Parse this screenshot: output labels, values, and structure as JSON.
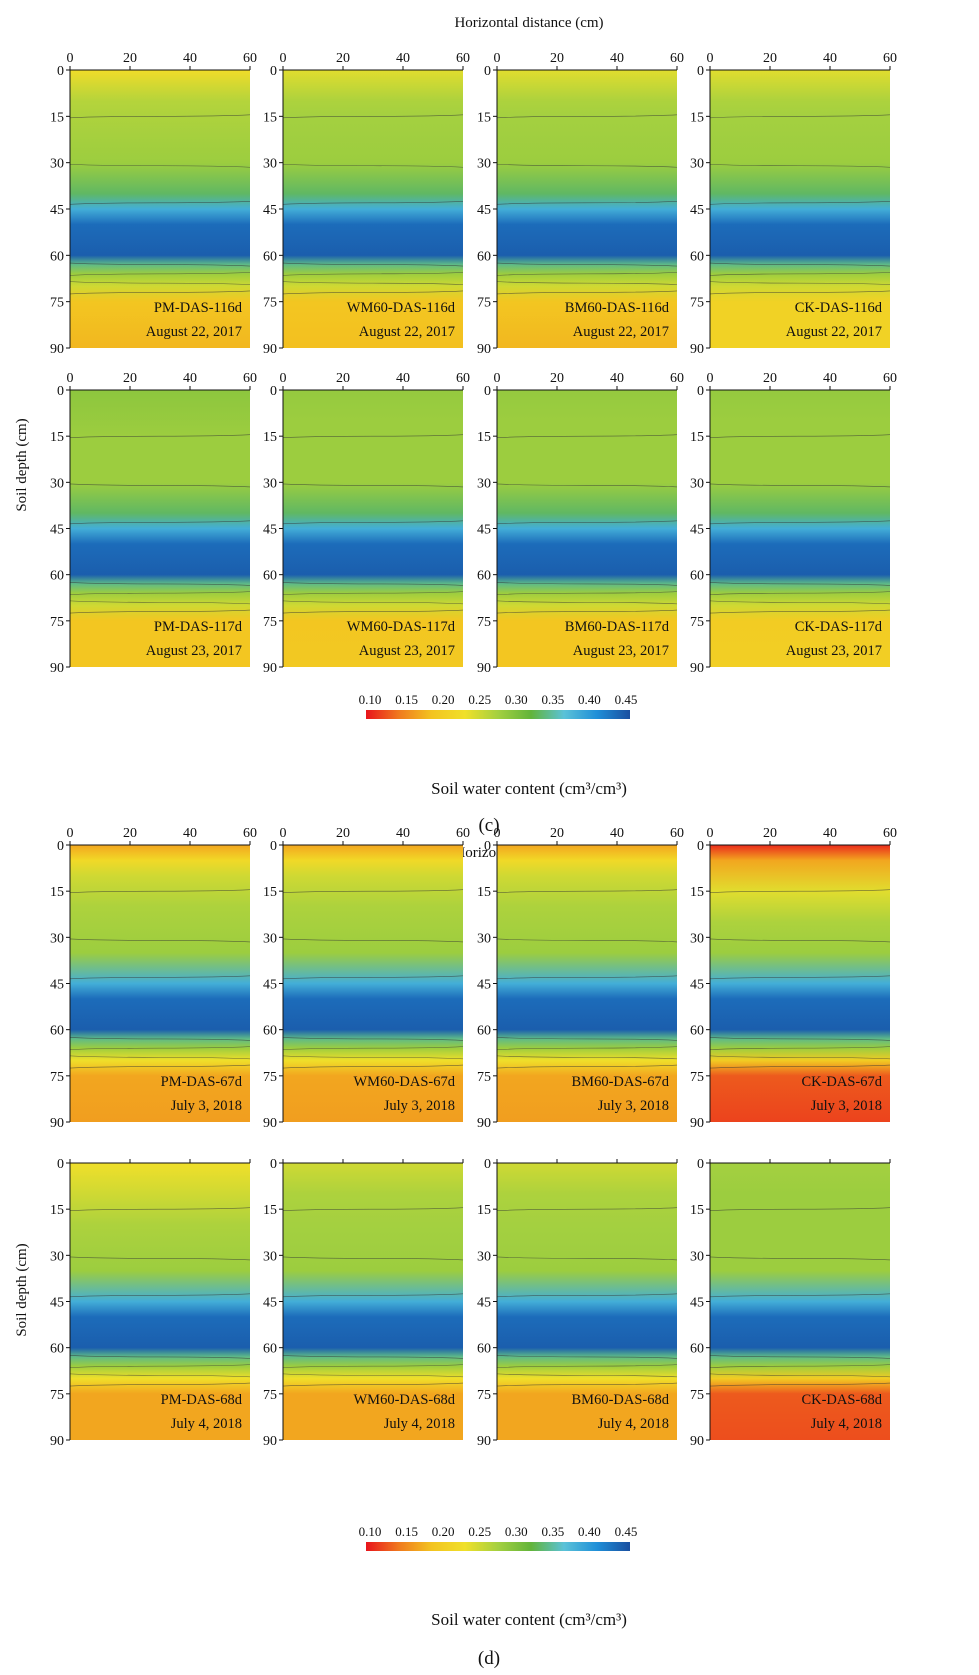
{
  "figure": {
    "panel_c_label": "(c)",
    "panel_d_label": "(d)"
  },
  "chart_data": [
    {
      "type": "heatmap",
      "panel": "c",
      "xlabel": "Horizontal distance (cm)",
      "ylabel": "Soil depth (cm)",
      "x_ticks": [
        0,
        20,
        40,
        60
      ],
      "y_ticks": [
        0,
        15,
        30,
        45,
        60,
        75,
        90
      ],
      "xlim": [
        0,
        60
      ],
      "ylim": [
        0,
        90
      ],
      "colorbar": {
        "label": "Soil water content (cm³/cm³)",
        "ticks": [
          "0.10",
          "0.15",
          "0.20",
          "0.25",
          "0.30",
          "0.35",
          "0.40",
          "0.45"
        ],
        "range": [
          0.1,
          0.45
        ],
        "colors": [
          "#e8141c",
          "#f07a1e",
          "#f3c420",
          "#f0e02a",
          "#a4d040",
          "#62b43a",
          "#5bc2d8",
          "#1f8fd8",
          "#1a4fa0"
        ]
      },
      "subplots": [
        {
          "name": "PM-DAS-116d",
          "date": "August 22, 2017",
          "profile": [
            [
              0,
              0.225
            ],
            [
              10,
              0.265
            ],
            [
              15,
              0.27
            ],
            [
              30,
              0.28
            ],
            [
              40,
              0.33
            ],
            [
              45,
              0.38
            ],
            [
              50,
              0.43
            ],
            [
              60,
              0.44
            ],
            [
              63,
              0.34
            ],
            [
              66,
              0.28
            ],
            [
              70,
              0.25
            ],
            [
              75,
              0.19
            ],
            [
              90,
              0.18
            ]
          ]
        },
        {
          "name": "WM60-DAS-116d",
          "date": "August 22, 2017",
          "profile": [
            [
              0,
              0.24
            ],
            [
              10,
              0.27
            ],
            [
              15,
              0.275
            ],
            [
              30,
              0.28
            ],
            [
              40,
              0.33
            ],
            [
              45,
              0.38
            ],
            [
              50,
              0.43
            ],
            [
              60,
              0.44
            ],
            [
              63,
              0.34
            ],
            [
              66,
              0.28
            ],
            [
              70,
              0.25
            ],
            [
              75,
              0.19
            ],
            [
              90,
              0.185
            ]
          ]
        },
        {
          "name": "BM60-DAS-116d",
          "date": "August 22, 2017",
          "profile": [
            [
              0,
              0.24
            ],
            [
              10,
              0.27
            ],
            [
              15,
              0.275
            ],
            [
              30,
              0.28
            ],
            [
              40,
              0.33
            ],
            [
              45,
              0.38
            ],
            [
              50,
              0.43
            ],
            [
              60,
              0.44
            ],
            [
              63,
              0.34
            ],
            [
              66,
              0.28
            ],
            [
              70,
              0.25
            ],
            [
              75,
              0.19
            ],
            [
              90,
              0.18
            ]
          ]
        },
        {
          "name": "CK-DAS-116d",
          "date": "August 22, 2017",
          "profile": [
            [
              0,
              0.24
            ],
            [
              10,
              0.27
            ],
            [
              15,
              0.275
            ],
            [
              30,
              0.28
            ],
            [
              40,
              0.33
            ],
            [
              45,
              0.38
            ],
            [
              50,
              0.43
            ],
            [
              60,
              0.44
            ],
            [
              63,
              0.34
            ],
            [
              66,
              0.28
            ],
            [
              70,
              0.25
            ],
            [
              75,
              0.21
            ],
            [
              90,
              0.21
            ]
          ]
        },
        {
          "name": "PM-DAS-117d",
          "date": "August 23, 2017",
          "profile": [
            [
              0,
              0.29
            ],
            [
              15,
              0.28
            ],
            [
              30,
              0.28
            ],
            [
              40,
              0.33
            ],
            [
              45,
              0.38
            ],
            [
              50,
              0.43
            ],
            [
              60,
              0.44
            ],
            [
              63,
              0.34
            ],
            [
              66,
              0.28
            ],
            [
              70,
              0.25
            ],
            [
              75,
              0.19
            ],
            [
              90,
              0.19
            ]
          ]
        },
        {
          "name": "WM60-DAS-117d",
          "date": "August 23, 2017",
          "profile": [
            [
              0,
              0.285
            ],
            [
              10,
              0.28
            ],
            [
              30,
              0.28
            ],
            [
              40,
              0.33
            ],
            [
              45,
              0.38
            ],
            [
              50,
              0.43
            ],
            [
              60,
              0.44
            ],
            [
              63,
              0.34
            ],
            [
              66,
              0.28
            ],
            [
              70,
              0.25
            ],
            [
              75,
              0.19
            ],
            [
              90,
              0.195
            ]
          ]
        },
        {
          "name": "BM60-DAS-117d",
          "date": "August 23, 2017",
          "profile": [
            [
              0,
              0.285
            ],
            [
              10,
              0.28
            ],
            [
              30,
              0.28
            ],
            [
              40,
              0.33
            ],
            [
              45,
              0.38
            ],
            [
              50,
              0.43
            ],
            [
              60,
              0.44
            ],
            [
              63,
              0.34
            ],
            [
              66,
              0.28
            ],
            [
              70,
              0.25
            ],
            [
              75,
              0.19
            ],
            [
              90,
              0.19
            ]
          ]
        },
        {
          "name": "CK-DAS-117d",
          "date": "August 23, 2017",
          "profile": [
            [
              0,
              0.285
            ],
            [
              10,
              0.28
            ],
            [
              30,
              0.28
            ],
            [
              40,
              0.33
            ],
            [
              45,
              0.38
            ],
            [
              50,
              0.43
            ],
            [
              60,
              0.44
            ],
            [
              63,
              0.34
            ],
            [
              66,
              0.28
            ],
            [
              70,
              0.25
            ],
            [
              75,
              0.2
            ],
            [
              90,
              0.205
            ]
          ]
        }
      ]
    },
    {
      "type": "heatmap",
      "panel": "d",
      "xlabel": "Horizontal distance (cm)",
      "ylabel": "Soil depth (cm)",
      "x_ticks": [
        0,
        20,
        40,
        60
      ],
      "y_ticks": [
        0,
        15,
        30,
        45,
        60,
        75,
        90
      ],
      "xlim": [
        0,
        60
      ],
      "ylim": [
        0,
        90
      ],
      "colorbar": {
        "label": "Soil water content (cm³/cm³)",
        "ticks": [
          "0.10",
          "0.15",
          "0.20",
          "0.25",
          "0.30",
          "0.35",
          "0.40",
          "0.45"
        ],
        "range": [
          0.1,
          0.45
        ],
        "colors": [
          "#e8141c",
          "#f07a1e",
          "#f3c420",
          "#f0e02a",
          "#a4d040",
          "#62b43a",
          "#5bc2d8",
          "#1f8fd8",
          "#1a4fa0"
        ]
      },
      "subplots": [
        {
          "name": "PM-DAS-67d",
          "date": "July 3, 2018",
          "profile": [
            [
              0,
              0.17
            ],
            [
              5,
              0.22
            ],
            [
              10,
              0.25
            ],
            [
              20,
              0.27
            ],
            [
              35,
              0.28
            ],
            [
              45,
              0.38
            ],
            [
              50,
              0.43
            ],
            [
              60,
              0.44
            ],
            [
              63,
              0.34
            ],
            [
              66,
              0.28
            ],
            [
              70,
              0.23
            ],
            [
              75,
              0.17
            ],
            [
              90,
              0.165
            ]
          ]
        },
        {
          "name": "WM60-DAS-67d",
          "date": "July 3, 2018",
          "profile": [
            [
              0,
              0.17
            ],
            [
              5,
              0.22
            ],
            [
              10,
              0.25
            ],
            [
              20,
              0.27
            ],
            [
              35,
              0.28
            ],
            [
              45,
              0.38
            ],
            [
              50,
              0.43
            ],
            [
              60,
              0.44
            ],
            [
              63,
              0.34
            ],
            [
              66,
              0.28
            ],
            [
              70,
              0.23
            ],
            [
              75,
              0.17
            ],
            [
              90,
              0.165
            ]
          ]
        },
        {
          "name": "BM60-DAS-67d",
          "date": "July 3, 2018",
          "profile": [
            [
              0,
              0.17
            ],
            [
              5,
              0.22
            ],
            [
              10,
              0.25
            ],
            [
              20,
              0.27
            ],
            [
              35,
              0.28
            ],
            [
              45,
              0.38
            ],
            [
              50,
              0.43
            ],
            [
              60,
              0.44
            ],
            [
              63,
              0.34
            ],
            [
              66,
              0.28
            ],
            [
              70,
              0.23
            ],
            [
              75,
              0.17
            ],
            [
              90,
              0.165
            ]
          ]
        },
        {
          "name": "CK-DAS-67d",
          "date": "July 3, 2018",
          "profile": [
            [
              0,
              0.11
            ],
            [
              5,
              0.17
            ],
            [
              15,
              0.24
            ],
            [
              25,
              0.27
            ],
            [
              35,
              0.28
            ],
            [
              45,
              0.38
            ],
            [
              50,
              0.43
            ],
            [
              60,
              0.44
            ],
            [
              63,
              0.34
            ],
            [
              66,
              0.28
            ],
            [
              70,
              0.2
            ],
            [
              75,
              0.13
            ],
            [
              90,
              0.12
            ]
          ]
        },
        {
          "name": "PM-DAS-68d",
          "date": "July 4, 2018",
          "profile": [
            [
              0,
              0.23
            ],
            [
              10,
              0.25
            ],
            [
              20,
              0.27
            ],
            [
              35,
              0.28
            ],
            [
              45,
              0.38
            ],
            [
              50,
              0.43
            ],
            [
              60,
              0.44
            ],
            [
              63,
              0.34
            ],
            [
              66,
              0.28
            ],
            [
              70,
              0.23
            ],
            [
              75,
              0.17
            ],
            [
              90,
              0.17
            ]
          ]
        },
        {
          "name": "WM60-DAS-68d",
          "date": "July 4, 2018",
          "profile": [
            [
              0,
              0.25
            ],
            [
              10,
              0.27
            ],
            [
              20,
              0.275
            ],
            [
              35,
              0.28
            ],
            [
              45,
              0.38
            ],
            [
              50,
              0.43
            ],
            [
              60,
              0.44
            ],
            [
              63,
              0.34
            ],
            [
              66,
              0.28
            ],
            [
              70,
              0.23
            ],
            [
              75,
              0.17
            ],
            [
              90,
              0.17
            ]
          ]
        },
        {
          "name": "BM60-DAS-68d",
          "date": "July 4, 2018",
          "profile": [
            [
              0,
              0.25
            ],
            [
              10,
              0.27
            ],
            [
              20,
              0.275
            ],
            [
              35,
              0.28
            ],
            [
              45,
              0.38
            ],
            [
              50,
              0.43
            ],
            [
              60,
              0.44
            ],
            [
              63,
              0.34
            ],
            [
              66,
              0.28
            ],
            [
              70,
              0.23
            ],
            [
              75,
              0.17
            ],
            [
              90,
              0.17
            ]
          ]
        },
        {
          "name": "CK-DAS-68d",
          "date": "July 4, 2018",
          "profile": [
            [
              0,
              0.275
            ],
            [
              10,
              0.28
            ],
            [
              35,
              0.28
            ],
            [
              45,
              0.38
            ],
            [
              50,
              0.43
            ],
            [
              60,
              0.44
            ],
            [
              63,
              0.34
            ],
            [
              66,
              0.28
            ],
            [
              70,
              0.2
            ],
            [
              75,
              0.13
            ],
            [
              90,
              0.125
            ]
          ]
        }
      ]
    }
  ]
}
